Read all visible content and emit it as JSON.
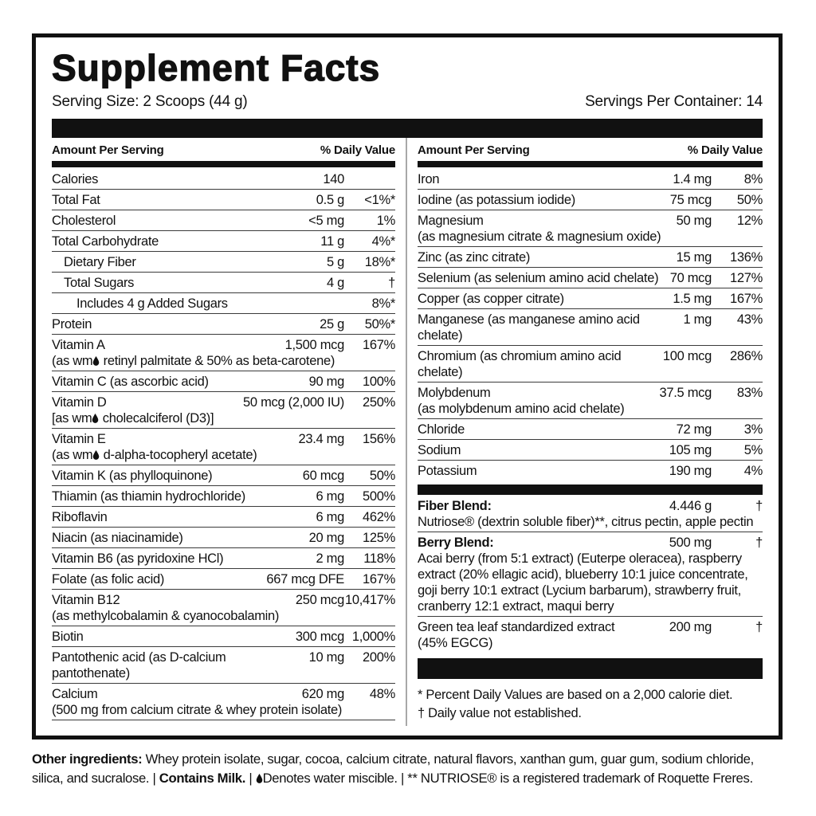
{
  "colors": {
    "ink": "#111111",
    "column_divider": "#a8a8a8",
    "row_rule": "#3a3a3a",
    "background": "#ffffff"
  },
  "header": {
    "title": "Supplement Facts",
    "serving_size": "Serving Size: 2 Scoops (44 g)",
    "servings_per_container": "Servings Per Container: 14"
  },
  "column_headers": {
    "amount": "Amount Per Serving",
    "daily_value": "% Daily Value"
  },
  "rows": {
    "left": [
      {
        "name": "Calories",
        "amount": "140",
        "dv": ""
      },
      {
        "name": "Total Fat",
        "amount": "0.5 g",
        "dv": "<1%*"
      },
      {
        "name": "Cholesterol",
        "amount": "<5 mg",
        "dv": "1%"
      },
      {
        "name": "Total Carbohydrate",
        "amount": "11 g",
        "dv": "4%*"
      },
      {
        "name": "Dietary Fiber",
        "amount": "5 g",
        "dv": "18%*",
        "indent": 1
      },
      {
        "name": "Total Sugars",
        "amount": "4 g",
        "dv": "†",
        "indent": 1
      },
      {
        "name": "Includes 4 g Added Sugars",
        "amount": "",
        "dv": "8%*",
        "indent": 2
      },
      {
        "name": "Protein",
        "amount": "25 g",
        "dv": "50%*"
      },
      {
        "name": "Vitamin A",
        "amount": "1,500 mcg",
        "dv": "167%",
        "sub": "(as wm{droplet} retinyl palmitate & 50% as beta-carotene)"
      },
      {
        "name": "Vitamin C (as ascorbic acid)",
        "amount": "90 mg",
        "dv": "100%"
      },
      {
        "name": "Vitamin D",
        "amount": "50 mcg (2,000 IU)",
        "dv": "250%",
        "sub": "[as wm{droplet} cholecalciferol (D3)]"
      },
      {
        "name": "Vitamin E",
        "amount": "23.4 mg",
        "dv": "156%",
        "sub": "(as wm{droplet} d-alpha-tocopheryl acetate)"
      },
      {
        "name": "Vitamin K (as phylloquinone)",
        "amount": "60 mcg",
        "dv": "50%"
      },
      {
        "name": "Thiamin (as thiamin hydrochloride)",
        "amount": "6 mg",
        "dv": "500%"
      },
      {
        "name": "Riboflavin",
        "amount": "6 mg",
        "dv": "462%"
      },
      {
        "name": "Niacin (as niacinamide)",
        "amount": "20 mg",
        "dv": "125%"
      },
      {
        "name": "Vitamin B6 (as pyridoxine HCl)",
        "amount": "2 mg",
        "dv": "118%"
      },
      {
        "name": "Folate (as folic acid)",
        "amount": "667 mcg DFE",
        "dv": "167%"
      },
      {
        "name": "Vitamin B12",
        "amount": "250 mcg",
        "dv": "10,417%",
        "sub": "(as methylcobalamin & cyanocobalamin)"
      },
      {
        "name": "Biotin",
        "amount": "300 mcg",
        "dv": "1,000%"
      },
      {
        "name": "Pantothenic acid (as D-calcium pantothenate)",
        "amount": "10 mg",
        "dv": "200%"
      },
      {
        "name": "Calcium",
        "amount": "620 mg",
        "dv": "48%",
        "sub": "(500 mg from calcium citrate & whey protein isolate)"
      }
    ],
    "right_top": [
      {
        "name": "Iron",
        "amount": "1.4 mg",
        "dv": "8%"
      },
      {
        "name": "Iodine (as potassium iodide)",
        "amount": "75 mcg",
        "dv": "50%"
      },
      {
        "name": "Magnesium",
        "amount": "50 mg",
        "dv": "12%",
        "sub": "(as magnesium citrate & magnesium oxide)"
      },
      {
        "name": "Zinc (as zinc citrate)",
        "amount": "15 mg",
        "dv": "136%"
      },
      {
        "name": "Selenium (as selenium amino acid chelate)",
        "amount": "70 mcg",
        "dv": "127%"
      },
      {
        "name": "Copper (as copper citrate)",
        "amount": "1.5 mg",
        "dv": "167%"
      },
      {
        "name": "Manganese (as manganese amino acid chelate)",
        "amount": "1 mg",
        "dv": "43%"
      },
      {
        "name": "Chromium (as chromium amino acid chelate)",
        "amount": "100 mcg",
        "dv": "286%"
      },
      {
        "name": "Molybdenum",
        "amount": "37.5 mcg",
        "dv": "83%",
        "sub": "(as molybdenum amino acid chelate)"
      },
      {
        "name": "Chloride",
        "amount": "72 mg",
        "dv": "3%"
      },
      {
        "name": "Sodium",
        "amount": "105 mg",
        "dv": "5%"
      },
      {
        "name": "Potassium",
        "amount": "190 mg",
        "dv": "4%",
        "noline": true
      }
    ],
    "right_blends": [
      {
        "name": "Fiber Blend:",
        "bold": true,
        "amount": "4.446 g",
        "dv": "†",
        "sub": "Nutriose® (dextrin soluble fiber)**, citrus pectin, apple pectin"
      },
      {
        "name": "Berry Blend:",
        "bold": true,
        "amount": "500 mg",
        "dv": "†",
        "sub": "Acai berry (from 5:1 extract) (Euterpe oleracea), raspberry extract (20% ellagic acid), blueberry 10:1 juice concentrate, goji berry 10:1 extract (Lycium barbarum), strawberry fruit, cranberry 12:1 extract, maqui berry"
      },
      {
        "name": "Green tea leaf standardized extract",
        "amount": "200 mg",
        "dv": "†",
        "sub": "(45% EGCG)",
        "noline": true
      }
    ]
  },
  "footnotes": [
    "* Percent Daily Values are based on a 2,000 calorie diet.",
    "† Daily value not established."
  ],
  "other_ingredients": {
    "lead_bold": "Other ingredients:",
    "ingredients_text": "Whey protein isolate, sugar, cocoa, calcium citrate, natural flavors, xanthan gum, guar gum, sodium chloride, silica, and sucralose.",
    "separator": "|",
    "contains_bold": "Contains Milk.",
    "water_miscible_note": "{droplet}Denotes water miscible.",
    "trademark_note": "** NUTRIOSE® is a registered trademark of Roquette Freres."
  },
  "icons": {
    "droplet": "water-droplet-icon"
  }
}
